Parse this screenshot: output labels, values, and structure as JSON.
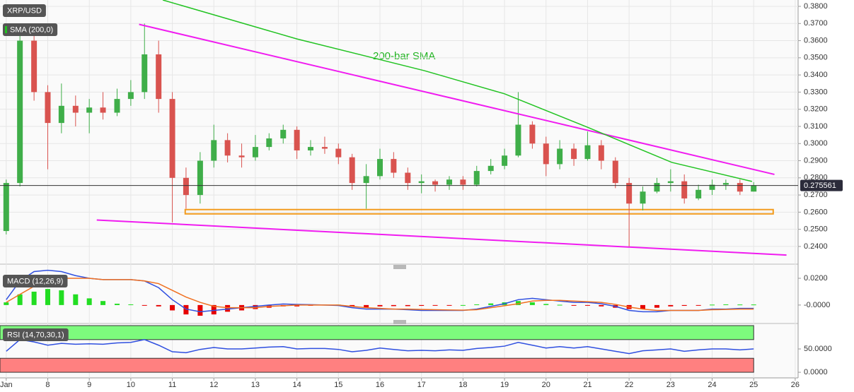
{
  "chart_data": [
    {
      "type": "candlestick",
      "title": "XRP/USD",
      "annotation": "200-bar SMA",
      "grid": true,
      "up_color": "#3fae49",
      "down_color": "#d9534f",
      "xlim": [
        6.85,
        26.07
      ],
      "ylim": [
        0.2305,
        0.3837
      ],
      "yticks": [
        {
          "value": 0.38,
          "label": "0.3800"
        },
        {
          "value": 0.37,
          "label": "0.3700"
        },
        {
          "value": 0.36,
          "label": "0.3600"
        },
        {
          "value": 0.35,
          "label": "0.3500"
        },
        {
          "value": 0.34,
          "label": "0.3400"
        },
        {
          "value": 0.33,
          "label": "0.3300"
        },
        {
          "value": 0.32,
          "label": "0.3200"
        },
        {
          "value": 0.31,
          "label": "0.3100"
        },
        {
          "value": 0.3,
          "label": "0.3000"
        },
        {
          "value": 0.29,
          "label": "0.2900"
        },
        {
          "value": 0.28,
          "label": "0.2800"
        },
        {
          "value": 0.27,
          "label": "0.2700"
        },
        {
          "value": 0.26,
          "label": "0.2600"
        },
        {
          "value": 0.25,
          "label": "0.2500"
        },
        {
          "value": 0.24,
          "label": "0.2400"
        }
      ],
      "x": [
        7,
        7.33,
        7.67,
        8,
        8.33,
        8.67,
        9,
        9.33,
        9.67,
        10,
        10.33,
        10.67,
        11,
        11.33,
        11.67,
        12,
        12.33,
        12.67,
        13,
        13.33,
        13.67,
        14,
        14.33,
        14.67,
        15,
        15.33,
        15.67,
        16,
        16.33,
        16.67,
        17,
        17.33,
        17.67,
        18,
        18.33,
        18.67,
        19,
        19.33,
        19.67,
        20,
        20.33,
        20.67,
        21,
        21.33,
        21.67,
        22,
        22.33,
        22.67,
        23,
        23.33,
        23.67,
        24,
        24.33,
        24.67,
        25
      ],
      "open": [
        0.249,
        0.277,
        0.36,
        0.33,
        0.312,
        0.322,
        0.318,
        0.321,
        0.318,
        0.326,
        0.33,
        0.352,
        0.326,
        0.28,
        0.27,
        0.29,
        0.302,
        0.293,
        0.292,
        0.298,
        0.303,
        0.308,
        0.296,
        0.298,
        0.297,
        0.292,
        0.277,
        0.281,
        0.291,
        0.283,
        0.277,
        0.278,
        0.276,
        0.279,
        0.276,
        0.284,
        0.287,
        0.293,
        0.311,
        0.3,
        0.288,
        0.297,
        0.291,
        0.299,
        0.29,
        0.277,
        0.265,
        0.272,
        0.277,
        0.278,
        0.268,
        0.273,
        0.276,
        0.277,
        0.272
      ],
      "high": [
        0.279,
        0.366,
        0.37,
        0.334,
        0.335,
        0.328,
        0.326,
        0.33,
        0.332,
        0.337,
        0.37,
        0.36,
        0.33,
        0.286,
        0.295,
        0.311,
        0.306,
        0.3,
        0.305,
        0.306,
        0.311,
        0.31,
        0.302,
        0.304,
        0.3,
        0.294,
        0.288,
        0.297,
        0.295,
        0.286,
        0.282,
        0.279,
        0.281,
        0.281,
        0.287,
        0.291,
        0.297,
        0.33,
        0.313,
        0.304,
        0.302,
        0.3,
        0.307,
        0.302,
        0.292,
        0.28,
        0.275,
        0.28,
        0.285,
        0.282,
        0.276,
        0.279,
        0.279,
        0.279,
        0.2775
      ],
      "low": [
        0.247,
        0.275,
        0.325,
        0.285,
        0.306,
        0.31,
        0.306,
        0.314,
        0.316,
        0.322,
        0.326,
        0.318,
        0.254,
        0.262,
        0.265,
        0.286,
        0.289,
        0.286,
        0.29,
        0.296,
        0.3,
        0.291,
        0.293,
        0.294,
        0.288,
        0.273,
        0.262,
        0.279,
        0.28,
        0.273,
        0.271,
        0.272,
        0.273,
        0.273,
        0.275,
        0.282,
        0.285,
        0.292,
        0.297,
        0.281,
        0.285,
        0.287,
        0.29,
        0.285,
        0.274,
        0.24,
        0.261,
        0.271,
        0.272,
        0.265,
        0.267,
        0.27,
        0.273,
        0.27,
        0.272
      ],
      "close": [
        0.277,
        0.36,
        0.33,
        0.312,
        0.322,
        0.318,
        0.321,
        0.318,
        0.326,
        0.33,
        0.352,
        0.326,
        0.28,
        0.27,
        0.29,
        0.302,
        0.293,
        0.292,
        0.298,
        0.303,
        0.308,
        0.296,
        0.298,
        0.297,
        0.292,
        0.277,
        0.281,
        0.291,
        0.283,
        0.277,
        0.278,
        0.276,
        0.279,
        0.276,
        0.284,
        0.287,
        0.293,
        0.311,
        0.3,
        0.288,
        0.297,
        0.291,
        0.299,
        0.29,
        0.277,
        0.265,
        0.272,
        0.277,
        0.278,
        0.268,
        0.273,
        0.276,
        0.277,
        0.272,
        0.2756
      ],
      "series": [
        {
          "name": "SMA (200,0)",
          "color": "#22c322",
          "x": [
            10.77,
            14,
            17.07,
            19,
            20.99,
            23.03,
            24.96
          ],
          "values": [
            0.3837,
            0.361,
            0.3425,
            0.329,
            0.3096,
            0.289,
            0.2779
          ]
        }
      ],
      "trendlines": [
        {
          "color": "#f01cf0",
          "x": [
            10.2,
            25.5
          ],
          "values": [
            0.3695,
            0.282
          ]
        },
        {
          "color": "#f01cf0",
          "x": [
            9.18,
            25.79
          ],
          "values": [
            0.2554,
            0.235
          ]
        }
      ],
      "zone": {
        "color": "#f29b1d",
        "x": [
          11.31,
          25.47
        ],
        "values": [
          0.2615,
          0.259
        ]
      },
      "last_price": {
        "value": 0.275561,
        "label": "0.275561"
      }
    },
    {
      "type": "macd",
      "title": "MACD (12,26,9)",
      "up_color": "#22dd22",
      "down_color": "#e60000",
      "xlim": [
        6.85,
        26.07
      ],
      "ylim": [
        -0.0122,
        0.0295
      ],
      "yticks": [
        {
          "value": 0.02,
          "label": "0.0200"
        },
        {
          "value": 0,
          "label": "-0.0000"
        }
      ],
      "x": [
        7,
        7.33,
        7.67,
        8,
        8.33,
        8.67,
        9,
        9.33,
        9.67,
        10,
        10.33,
        10.67,
        11,
        11.33,
        11.67,
        12,
        12.33,
        12.67,
        13,
        13.33,
        13.67,
        14,
        14.33,
        14.67,
        15,
        15.33,
        15.67,
        16,
        16.33,
        16.67,
        17,
        17.33,
        17.67,
        18,
        18.33,
        18.67,
        19,
        19.33,
        19.67,
        20,
        20.33,
        20.67,
        21,
        21.33,
        21.67,
        22,
        22.33,
        22.67,
        23,
        23.33,
        23.67,
        24,
        24.33,
        24.67,
        25
      ],
      "histogram": [
        0.002,
        0.008,
        0.01,
        0.012,
        0.011,
        0.008,
        0.005,
        0.003,
        0.001,
        0.0005,
        -0.0005,
        -0.001,
        -0.004,
        -0.007,
        -0.008,
        -0.007,
        -0.005,
        -0.004,
        -0.003,
        -0.002,
        -0.001,
        -0.001,
        -0.0005,
        0.0003,
        0.0003,
        -0.001,
        -0.002,
        -0.001,
        -0.0008,
        -0.0008,
        -0.0006,
        -0.0004,
        -0.0002,
        0,
        0.0005,
        0.0012,
        0.002,
        0.003,
        0.002,
        0.0008,
        0.0002,
        -0.0003,
        -0.0002,
        -0.001,
        -0.002,
        -0.003,
        -0.003,
        -0.002,
        -0.001,
        -0.0006,
        -0.0002,
        0.0003,
        0.0005,
        0.0004,
        0.0004
      ],
      "series": [
        {
          "color": "#2f4fe0",
          "values": [
            0.004,
            0.018,
            0.025,
            0.026,
            0.025,
            0.022,
            0.02,
            0.019,
            0.019,
            0.019,
            0.018,
            0.013,
            0.004,
            -0.003,
            -0.005,
            -0.004,
            -0.003,
            -0.002,
            -0.001,
            0,
            0.0008,
            0.0005,
            0.0003,
            0,
            -0.0003,
            -0.002,
            -0.003,
            -0.003,
            -0.003,
            -0.0035,
            -0.004,
            -0.004,
            -0.004,
            -0.004,
            -0.003,
            -0.001,
            0.001,
            0.004,
            0.005,
            0.004,
            0.003,
            0.002,
            0.002,
            0.001,
            -0.001,
            -0.004,
            -0.005,
            -0.005,
            -0.004,
            -0.004,
            -0.004,
            -0.003,
            -0.003,
            -0.0025,
            -0.0025
          ]
        },
        {
          "color": "#f07020",
          "values": [
            0.002,
            0.008,
            0.014,
            0.018,
            0.02,
            0.02,
            0.02,
            0.019,
            0.019,
            0.019,
            0.018,
            0.016,
            0.011,
            0.006,
            0.002,
            -0.001,
            -0.002,
            -0.002,
            -0.002,
            -0.001,
            -0.0005,
            0,
            0,
            0,
            0,
            -0.001,
            -0.002,
            -0.0025,
            -0.003,
            -0.003,
            -0.0033,
            -0.0035,
            -0.0037,
            -0.0038,
            -0.0035,
            -0.002,
            -0.0005,
            0.001,
            0.003,
            0.0035,
            0.0035,
            0.003,
            0.0025,
            0.002,
            0.0005,
            -0.0015,
            -0.003,
            -0.004,
            -0.004,
            -0.004,
            -0.004,
            -0.0035,
            -0.0033,
            -0.003,
            -0.003
          ]
        }
      ]
    },
    {
      "type": "rsi",
      "title": "RSI (14,70,30,1)",
      "xlim": [
        6.85,
        26.07
      ],
      "ylim": [
        -12,
        100
      ],
      "yticks": [
        {
          "value": 50,
          "label": "50.0000"
        },
        {
          "value": 0,
          "label": "0.0000"
        }
      ],
      "xticks": [
        {
          "value": 7,
          "label": "Jan"
        },
        8,
        9,
        10,
        11,
        12,
        13,
        14,
        15,
        16,
        17,
        18,
        19,
        20,
        21,
        22,
        23,
        24,
        25,
        26
      ],
      "bands": [
        {
          "ylim": [
            70,
            100
          ],
          "color": "#7dfa7d"
        },
        {
          "ylim": [
            0,
            30
          ],
          "color": "#ff8080"
        }
      ],
      "x": [
        7,
        7.33,
        7.67,
        8,
        8.33,
        8.67,
        9,
        9.33,
        9.67,
        10,
        10.33,
        10.67,
        11,
        11.33,
        11.67,
        12,
        12.33,
        12.67,
        13,
        13.33,
        13.67,
        14,
        14.33,
        14.67,
        15,
        15.33,
        15.67,
        16,
        16.33,
        16.67,
        17,
        17.33,
        17.67,
        18,
        18.33,
        18.67,
        19,
        19.33,
        19.67,
        20,
        20.33,
        20.67,
        21,
        21.33,
        21.67,
        22,
        22.33,
        22.67,
        23,
        23.33,
        23.67,
        24,
        24.33,
        24.67,
        25
      ],
      "series": [
        {
          "color": "#2f4fe0",
          "values": [
            45,
            70,
            65,
            58,
            62,
            60,
            61,
            60,
            63,
            64,
            70,
            58,
            44,
            42,
            49,
            53,
            50,
            50,
            52,
            54,
            55,
            50,
            51,
            51,
            49,
            44,
            47,
            52,
            49,
            46,
            47,
            46,
            48,
            47,
            51,
            53,
            56,
            64,
            58,
            52,
            55,
            52,
            55,
            50,
            45,
            40,
            46,
            48,
            50,
            45,
            48,
            50,
            50,
            48,
            50
          ]
        }
      ]
    }
  ]
}
